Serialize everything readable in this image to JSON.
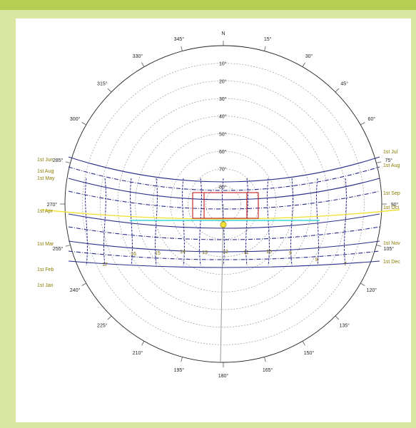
{
  "azimuth_labels": [
    {
      "deg": 0,
      "text": "N"
    },
    {
      "deg": 15,
      "text": "15°"
    },
    {
      "deg": 30,
      "text": "30°"
    },
    {
      "deg": 45,
      "text": "45°"
    },
    {
      "deg": 60,
      "text": "60°"
    },
    {
      "deg": 75,
      "text": "75°"
    },
    {
      "deg": 90,
      "text": "90°"
    },
    {
      "deg": 105,
      "text": "105°"
    },
    {
      "deg": 120,
      "text": "120°"
    },
    {
      "deg": 135,
      "text": "135°"
    },
    {
      "deg": 150,
      "text": "150°"
    },
    {
      "deg": 165,
      "text": "165°"
    },
    {
      "deg": 180,
      "text": "180°"
    },
    {
      "deg": 195,
      "text": "195°"
    },
    {
      "deg": 210,
      "text": "210°"
    },
    {
      "deg": 225,
      "text": "225°"
    },
    {
      "deg": 240,
      "text": "240°"
    },
    {
      "deg": 255,
      "text": "255°"
    },
    {
      "deg": 270,
      "text": "270°"
    },
    {
      "deg": 285,
      "text": "285°"
    },
    {
      "deg": 300,
      "text": "300°"
    },
    {
      "deg": 315,
      "text": "315°"
    },
    {
      "deg": 330,
      "text": "330°"
    },
    {
      "deg": 345,
      "text": "345°"
    }
  ],
  "altitude_labels": [
    "10°",
    "20°",
    "30°",
    "40°",
    "50°",
    "60°",
    "70°",
    "80°"
  ],
  "date_labels_left": [
    "1st Jun",
    "1st Aug",
    "1st May",
    "1st Apr",
    "1st Mar",
    "1st Feb",
    "1st Jan"
  ],
  "date_labels_right": [
    "1st Jul",
    "1st Aug",
    "1st Sep",
    "1st Oct",
    "1st Nov",
    "1st Dec"
  ],
  "hour_labels": [
    "17",
    "16",
    "15",
    "14",
    "13",
    "12",
    "11",
    "10",
    "9",
    "8",
    "7"
  ],
  "colors": {
    "background": "#d9e7a3",
    "top_bar": "#b6cf53",
    "date_lines": "#2a2d8a",
    "current_path": "#f2e33a",
    "cyan_path": "#3ad3d3",
    "obstruction": "#c02020"
  }
}
